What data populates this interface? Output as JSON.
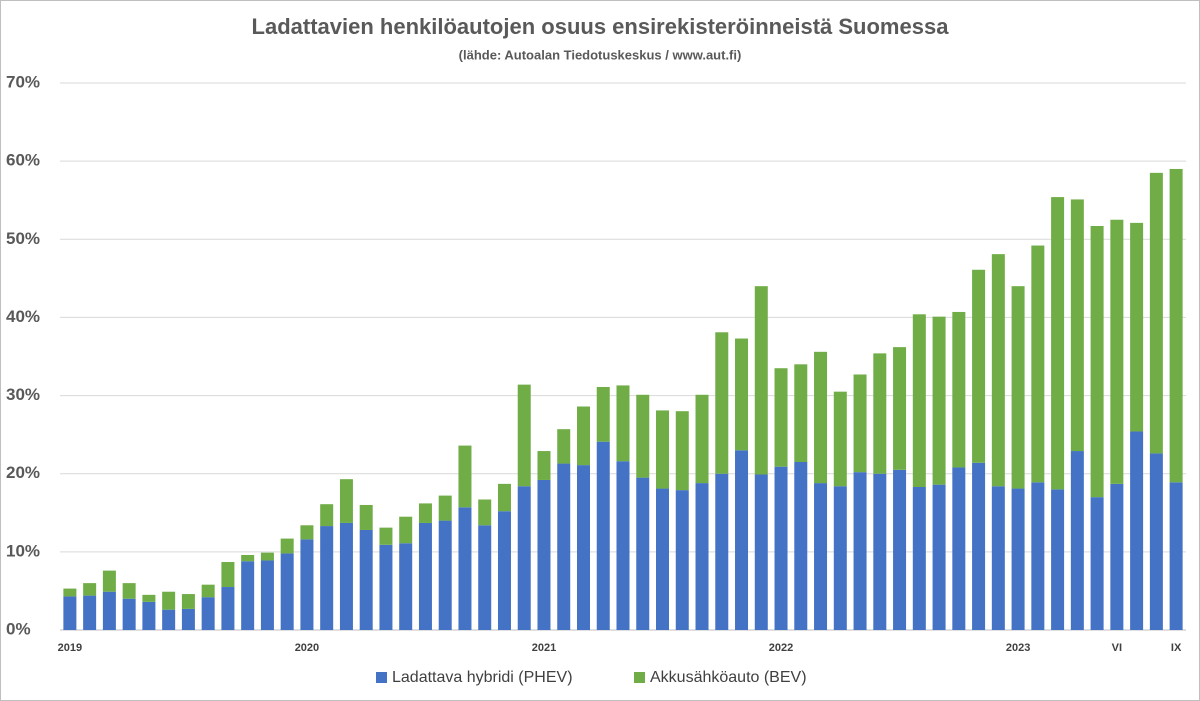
{
  "chart_data": {
    "type": "stacked_bar",
    "title": "Ladattavien henkilöautojen osuus ensirekisteröinneistä Suomessa",
    "subtitle": "(lähde: Autoalan Tiedotuskeskus / www.aut.fi)",
    "categories": [
      "2019",
      null,
      null,
      null,
      null,
      null,
      null,
      null,
      null,
      null,
      null,
      null,
      "2020",
      null,
      null,
      null,
      null,
      null,
      null,
      null,
      null,
      null,
      null,
      null,
      "2021",
      null,
      null,
      null,
      null,
      null,
      null,
      null,
      null,
      null,
      null,
      null,
      "2022",
      null,
      null,
      null,
      null,
      null,
      null,
      null,
      null,
      null,
      null,
      null,
      "2023",
      null,
      null,
      null,
      null,
      "VI",
      null,
      null,
      "IX"
    ],
    "series": [
      {
        "name": "Ladattava hybridi (PHEV)",
        "color": "#4472c4",
        "values": [
          4.3,
          4.4,
          4.9,
          4.0,
          3.6,
          2.6,
          2.7,
          4.2,
          5.5,
          8.8,
          8.9,
          9.8,
          11.6,
          13.3,
          13.7,
          12.8,
          10.9,
          11.1,
          13.7,
          14.0,
          15.7,
          13.4,
          15.2,
          18.4,
          19.2,
          21.3,
          21.1,
          24.1,
          21.6,
          19.5,
          18.1,
          17.9,
          18.8,
          20.0,
          23.0,
          19.9,
          20.9,
          21.5,
          18.8,
          18.4,
          20.2,
          20.0,
          20.5,
          18.3,
          18.6,
          20.8,
          21.4,
          18.4,
          18.1,
          18.9,
          18.0,
          22.9,
          17.0,
          18.7,
          25.4,
          22.6,
          18.9
        ]
      },
      {
        "name": "Akkusähköauto (BEV)",
        "color": "#70ad47",
        "values": [
          1.0,
          1.6,
          2.7,
          2.0,
          0.9,
          2.3,
          1.9,
          1.6,
          3.2,
          0.8,
          1.0,
          1.9,
          1.8,
          2.8,
          5.6,
          3.2,
          2.2,
          3.4,
          2.5,
          3.2,
          7.9,
          3.3,
          3.5,
          13.0,
          3.7,
          4.4,
          7.5,
          7.0,
          9.7,
          10.6,
          10.0,
          10.1,
          11.3,
          18.1,
          14.3,
          24.1,
          12.6,
          12.5,
          16.8,
          12.1,
          12.5,
          15.4,
          15.7,
          22.1,
          21.5,
          19.9,
          24.7,
          29.7,
          25.9,
          30.3,
          37.4,
          32.2,
          34.7,
          33.8,
          26.7,
          35.9,
          40.1
        ]
      }
    ],
    "ylim": [
      0,
      70
    ],
    "yticks": [
      {
        "value": 0,
        "label": "0%"
      },
      {
        "value": 10,
        "label": "10%"
      },
      {
        "value": 20,
        "label": "20%"
      },
      {
        "value": 30,
        "label": "30%"
      },
      {
        "value": 40,
        "label": "40%"
      },
      {
        "value": 50,
        "label": "50%"
      },
      {
        "value": 60,
        "label": "60%"
      },
      {
        "value": 70,
        "label": "70%"
      }
    ],
    "grid": true,
    "legend": "bottom"
  }
}
